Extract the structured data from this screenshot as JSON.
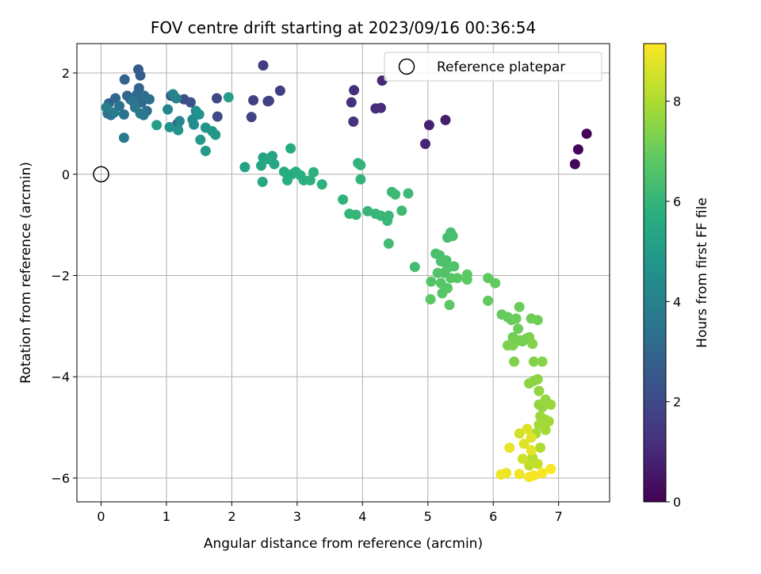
{
  "chart_data": {
    "type": "scatter",
    "title": "FOV centre drift starting at 2023/09/16 00:36:54",
    "xlabel": "Angular distance from reference (arcmin)",
    "ylabel": "Rotation from reference (arcmin)",
    "xlim": [
      -0.37,
      7.78
    ],
    "ylim": [
      -6.47,
      2.58
    ],
    "xticks": [
      0,
      1,
      2,
      3,
      4,
      5,
      6,
      7
    ],
    "yticks": [
      -6,
      -4,
      -2,
      0,
      2
    ],
    "xtick_labels": [
      "0",
      "1",
      "2",
      "3",
      "4",
      "5",
      "6",
      "7"
    ],
    "ytick_labels": [
      "−6",
      "−4",
      "−2",
      "0",
      "2"
    ],
    "grid": true,
    "legend": {
      "position": "top-right",
      "entries": [
        {
          "label": "Reference platepar",
          "marker": "hollow-circle",
          "color": "#000000"
        }
      ]
    },
    "reference_point": {
      "x": 0,
      "y": 0
    },
    "colorbar": {
      "label": "Hours from first FF file",
      "min": 0,
      "max": 9.15,
      "ticks": [
        0,
        2,
        4,
        6,
        8
      ],
      "tick_labels": [
        "0",
        "2",
        "4",
        "6",
        "8"
      ],
      "colormap": "viridis"
    },
    "series": [
      {
        "points": [
          [
            7.43,
            0.8,
            0.05
          ],
          [
            7.3,
            0.49,
            0.1
          ],
          [
            7.25,
            0.2,
            0.15
          ],
          [
            5.27,
            1.07,
            0.7
          ],
          [
            5.02,
            0.97,
            0.8
          ],
          [
            4.96,
            0.6,
            0.9
          ],
          [
            4.3,
            1.85,
            1.0
          ],
          [
            4.28,
            1.31,
            1.05
          ],
          [
            4.2,
            1.3,
            1.1
          ],
          [
            3.87,
            1.66,
            1.15
          ],
          [
            3.83,
            1.42,
            1.2
          ],
          [
            3.86,
            1.04,
            1.25
          ],
          [
            2.48,
            2.15,
            1.6
          ],
          [
            2.74,
            1.65,
            1.65
          ],
          [
            2.57,
            1.45,
            1.7
          ],
          [
            2.55,
            1.44,
            1.72
          ],
          [
            2.33,
            1.46,
            1.75
          ],
          [
            2.3,
            1.13,
            1.8
          ],
          [
            1.77,
            1.5,
            2.0
          ],
          [
            1.78,
            1.14,
            2.1
          ],
          [
            1.27,
            1.48,
            2.2
          ],
          [
            1.37,
            1.42,
            2.3
          ],
          [
            1.17,
            1.0,
            2.4
          ],
          [
            1.07,
            1.55,
            2.5
          ],
          [
            0.57,
            2.07,
            2.6
          ],
          [
            0.6,
            1.95,
            2.7
          ],
          [
            0.36,
            1.87,
            2.8
          ],
          [
            0.58,
            1.7,
            2.85
          ],
          [
            0.12,
            1.4,
            2.9
          ],
          [
            0.22,
            1.5,
            2.95
          ],
          [
            0.4,
            1.55,
            3.0
          ],
          [
            0.45,
            1.48,
            3.05
          ],
          [
            0.55,
            1.58,
            3.1
          ],
          [
            0.62,
            1.42,
            3.15
          ],
          [
            0.7,
            1.25,
            3.2
          ],
          [
            0.66,
            1.55,
            3.25
          ],
          [
            0.74,
            1.48,
            3.3
          ],
          [
            0.1,
            1.2,
            3.35
          ],
          [
            0.15,
            1.17,
            3.4
          ],
          [
            0.28,
            1.35,
            3.45
          ],
          [
            0.35,
            1.18,
            3.5
          ],
          [
            0.48,
            1.45,
            3.55
          ],
          [
            0.52,
            1.32,
            3.6
          ],
          [
            0.6,
            1.2,
            3.65
          ],
          [
            0.65,
            1.17,
            3.7
          ],
          [
            0.35,
            0.72,
            3.75
          ],
          [
            0.2,
            1.22,
            3.8
          ],
          [
            0.08,
            1.32,
            3.85
          ],
          [
            1.1,
            1.58,
            4.0
          ],
          [
            1.15,
            1.5,
            4.05
          ],
          [
            1.02,
            1.28,
            4.1
          ],
          [
            1.2,
            1.05,
            4.2
          ],
          [
            1.4,
            1.08,
            4.3
          ],
          [
            1.42,
            0.98,
            4.4
          ],
          [
            1.45,
            1.25,
            4.5
          ],
          [
            1.5,
            1.18,
            4.6
          ],
          [
            1.05,
            0.93,
            4.65
          ],
          [
            1.18,
            0.87,
            4.7
          ],
          [
            1.6,
            0.92,
            4.75
          ],
          [
            1.7,
            0.85,
            4.8
          ],
          [
            1.75,
            0.78,
            4.85
          ],
          [
            1.52,
            0.68,
            4.9
          ],
          [
            1.6,
            0.46,
            4.95
          ],
          [
            0.85,
            0.97,
            5.0
          ],
          [
            1.95,
            1.52,
            5.1
          ],
          [
            2.2,
            0.14,
            5.2
          ],
          [
            2.48,
            0.33,
            5.25
          ],
          [
            2.62,
            0.36,
            5.3
          ],
          [
            2.45,
            0.17,
            5.35
          ],
          [
            2.47,
            -0.15,
            5.4
          ],
          [
            2.55,
            0.3,
            5.45
          ],
          [
            2.65,
            0.2,
            5.5
          ],
          [
            2.9,
            0.51,
            5.55
          ],
          [
            2.8,
            0.05,
            5.6
          ],
          [
            2.92,
            0.0,
            5.65
          ],
          [
            2.98,
            0.05,
            5.7
          ],
          [
            3.05,
            -0.02,
            5.72
          ],
          [
            2.85,
            -0.12,
            5.75
          ],
          [
            3.1,
            -0.12,
            5.78
          ],
          [
            3.25,
            0.04,
            5.8
          ],
          [
            3.2,
            -0.12,
            5.82
          ],
          [
            3.38,
            -0.2,
            5.85
          ],
          [
            3.7,
            -0.5,
            5.88
          ],
          [
            3.93,
            0.22,
            5.9
          ],
          [
            3.97,
            0.18,
            5.92
          ],
          [
            3.97,
            -0.1,
            5.95
          ],
          [
            3.8,
            -0.78,
            5.98
          ],
          [
            3.9,
            -0.8,
            6.0
          ],
          [
            4.08,
            -0.73,
            6.02
          ],
          [
            4.2,
            -0.78,
            6.05
          ],
          [
            4.28,
            -0.82,
            6.08
          ],
          [
            4.38,
            -0.92,
            6.1
          ],
          [
            4.4,
            -0.82,
            6.12
          ],
          [
            4.45,
            -0.35,
            6.15
          ],
          [
            4.5,
            -0.4,
            6.18
          ],
          [
            4.7,
            -0.38,
            6.2
          ],
          [
            4.6,
            -0.72,
            6.22
          ],
          [
            4.4,
            -1.37,
            6.25
          ],
          [
            4.8,
            -1.83,
            6.3
          ],
          [
            5.3,
            -1.25,
            6.35
          ],
          [
            5.35,
            -1.15,
            6.38
          ],
          [
            5.38,
            -1.22,
            6.4
          ],
          [
            5.12,
            -1.57,
            6.42
          ],
          [
            5.18,
            -1.6,
            6.45
          ],
          [
            5.2,
            -1.72,
            6.48
          ],
          [
            5.28,
            -1.7,
            6.5
          ],
          [
            5.3,
            -1.85,
            6.52
          ],
          [
            5.4,
            -1.82,
            6.55
          ],
          [
            5.25,
            -1.95,
            6.58
          ],
          [
            5.15,
            -1.95,
            6.6
          ],
          [
            5.05,
            -2.12,
            6.62
          ],
          [
            5.2,
            -2.15,
            6.65
          ],
          [
            5.22,
            -2.35,
            6.68
          ],
          [
            5.35,
            -2.05,
            6.7
          ],
          [
            5.45,
            -2.05,
            6.72
          ],
          [
            5.3,
            -2.25,
            6.75
          ],
          [
            5.04,
            -2.47,
            6.78
          ],
          [
            5.33,
            -2.58,
            6.8
          ],
          [
            5.6,
            -1.98,
            6.82
          ],
          [
            5.6,
            -2.08,
            6.85
          ],
          [
            5.92,
            -2.05,
            6.88
          ],
          [
            6.03,
            -2.15,
            6.9
          ],
          [
            5.92,
            -2.5,
            6.92
          ],
          [
            6.13,
            -2.77,
            6.95
          ],
          [
            6.22,
            -2.82,
            6.98
          ],
          [
            6.28,
            -2.88,
            7.0
          ],
          [
            6.35,
            -2.85,
            7.02
          ],
          [
            6.4,
            -2.62,
            7.05
          ],
          [
            6.38,
            -3.05,
            7.08
          ],
          [
            6.58,
            -2.85,
            7.1
          ],
          [
            6.68,
            -2.88,
            7.12
          ],
          [
            6.3,
            -3.22,
            7.15
          ],
          [
            6.35,
            -3.3,
            7.18
          ],
          [
            6.4,
            -3.28,
            7.2
          ],
          [
            6.45,
            -3.3,
            7.22
          ],
          [
            6.5,
            -3.25,
            7.25
          ],
          [
            6.55,
            -3.22,
            7.28
          ],
          [
            6.3,
            -3.38,
            7.3
          ],
          [
            6.22,
            -3.38,
            7.32
          ],
          [
            6.32,
            -3.7,
            7.35
          ],
          [
            6.6,
            -3.35,
            7.38
          ],
          [
            6.62,
            -3.7,
            7.42
          ],
          [
            6.75,
            -3.7,
            7.45
          ],
          [
            6.55,
            -4.13,
            7.48
          ],
          [
            6.68,
            -4.05,
            7.52
          ],
          [
            6.62,
            -4.08,
            7.55
          ],
          [
            6.7,
            -4.28,
            7.58
          ],
          [
            6.7,
            -4.55,
            7.62
          ],
          [
            6.75,
            -4.6,
            7.65
          ],
          [
            6.8,
            -4.45,
            7.68
          ],
          [
            6.88,
            -4.55,
            7.72
          ],
          [
            6.72,
            -4.78,
            7.75
          ],
          [
            6.8,
            -4.85,
            7.78
          ],
          [
            6.85,
            -4.88,
            7.82
          ],
          [
            6.7,
            -4.95,
            7.85
          ],
          [
            6.8,
            -5.05,
            7.88
          ],
          [
            6.65,
            -5.12,
            7.92
          ],
          [
            6.72,
            -5.4,
            8.05
          ],
          [
            6.6,
            -5.6,
            8.15
          ],
          [
            6.55,
            -5.75,
            8.25
          ],
          [
            6.68,
            -5.72,
            8.35
          ],
          [
            6.45,
            -5.62,
            8.45
          ],
          [
            6.4,
            -5.12,
            8.55
          ],
          [
            6.52,
            -5.03,
            8.65
          ],
          [
            6.58,
            -5.2,
            8.7
          ],
          [
            6.47,
            -5.32,
            8.75
          ],
          [
            6.58,
            -5.45,
            8.8
          ],
          [
            6.25,
            -5.4,
            8.85
          ],
          [
            6.12,
            -5.93,
            8.9
          ],
          [
            6.2,
            -5.9,
            8.92
          ],
          [
            6.4,
            -5.92,
            8.95
          ],
          [
            6.55,
            -5.98,
            9.0
          ],
          [
            6.62,
            -5.95,
            9.05
          ],
          [
            6.75,
            -5.9,
            9.08
          ],
          [
            6.88,
            -5.82,
            9.1
          ]
        ]
      }
    ]
  }
}
